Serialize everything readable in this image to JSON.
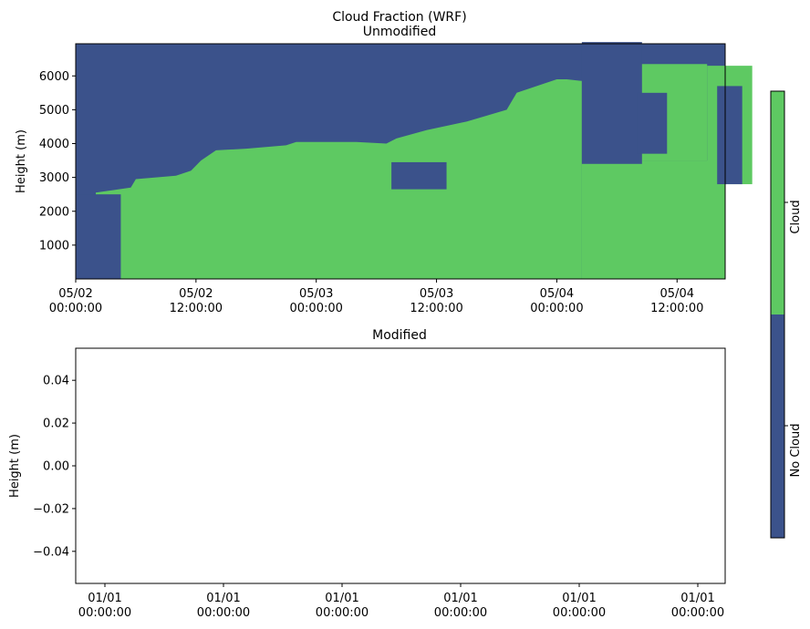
{
  "figure": {
    "suptitle": "Cloud Fraction (WRF)"
  },
  "colors": {
    "no_cloud": "#3b528b",
    "cloud": "#5ec962",
    "axis": "#000000"
  },
  "colorbar": {
    "labels": [
      "No Cloud",
      "Cloud"
    ],
    "placement": "right"
  },
  "chart_data": [
    {
      "type": "heatmap",
      "title": "Unmodified",
      "ylabel": "Height (m)",
      "xlabel": "",
      "x_range": [
        "05/02 00:00:00",
        "05/04 16:48:00"
      ],
      "ylim": [
        0,
        6950
      ],
      "xtick_labels": [
        {
          "date": "05/02",
          "time": "00:00:00"
        },
        {
          "date": "05/02",
          "time": "12:00:00"
        },
        {
          "date": "05/03",
          "time": "00:00:00"
        },
        {
          "date": "05/03",
          "time": "12:00:00"
        },
        {
          "date": "05/04",
          "time": "00:00:00"
        },
        {
          "date": "05/04",
          "time": "12:00:00"
        }
      ],
      "xtick_hours": [
        0,
        12,
        24,
        36,
        48,
        60
      ],
      "yticks": [
        1000,
        2000,
        3000,
        4000,
        5000,
        6000
      ],
      "ytick_labels": [
        "1000",
        "2000",
        "3000",
        "4000",
        "5000",
        "6000"
      ],
      "categories": [
        "No Cloud",
        "Cloud"
      ],
      "cloud_top_profile": {
        "hours": [
          2.0,
          5.5,
          6.0,
          10.0,
          11.5,
          12.5,
          14.0,
          17.0,
          21.0,
          22.0,
          28.0,
          31.0,
          32.0,
          35.0,
          39.0,
          43.0,
          44.0,
          48.0,
          49.0,
          50.5
        ],
        "height_m": [
          2550,
          2700,
          2950,
          3050,
          3200,
          3500,
          3800,
          3850,
          3950,
          4050,
          4050,
          4000,
          4150,
          4400,
          4650,
          5000,
          5500,
          5900,
          5900,
          5850
        ]
      },
      "cloud_patches_upper": [
        {
          "hours": [
            56.0,
            63.0
          ],
          "height_m": [
            3500,
            6350
          ]
        },
        {
          "hours": [
            63.0,
            67.5
          ],
          "height_m": [
            2800,
            6300
          ]
        }
      ],
      "no_cloud_intrusions": [
        {
          "hours": [
            50.5,
            56.5
          ],
          "height_m": [
            3400,
            7000
          ]
        },
        {
          "hours": [
            56.0,
            59.0
          ],
          "height_m": [
            3700,
            5500
          ]
        },
        {
          "hours": [
            64.0,
            66.5
          ],
          "height_m": [
            2800,
            5700
          ]
        },
        {
          "hours": [
            31.5,
            37.0
          ],
          "height_m": [
            2650,
            3450
          ]
        },
        {
          "hours": [
            0.0,
            4.5
          ],
          "height_m": [
            0,
            2500
          ]
        }
      ]
    },
    {
      "type": "heatmap",
      "title": "Modified",
      "ylabel": "Height (m)",
      "xlabel": "",
      "ylim": [
        -0.055,
        0.055
      ],
      "yticks": [
        0.04,
        0.02,
        0.0,
        -0.02,
        -0.04
      ],
      "ytick_labels": [
        "0.04",
        "0.02",
        "0.00",
        "−0.02",
        "−0.04"
      ],
      "xtick_labels": [
        {
          "date": "01/01",
          "time": "00:00:00"
        },
        {
          "date": "01/01",
          "time": "00:00:00"
        },
        {
          "date": "01/01",
          "time": "00:00:00"
        },
        {
          "date": "01/01",
          "time": "00:00:00"
        },
        {
          "date": "01/01",
          "time": "00:00:00"
        },
        {
          "date": "01/01",
          "time": "00:00:00"
        }
      ],
      "values": []
    }
  ]
}
